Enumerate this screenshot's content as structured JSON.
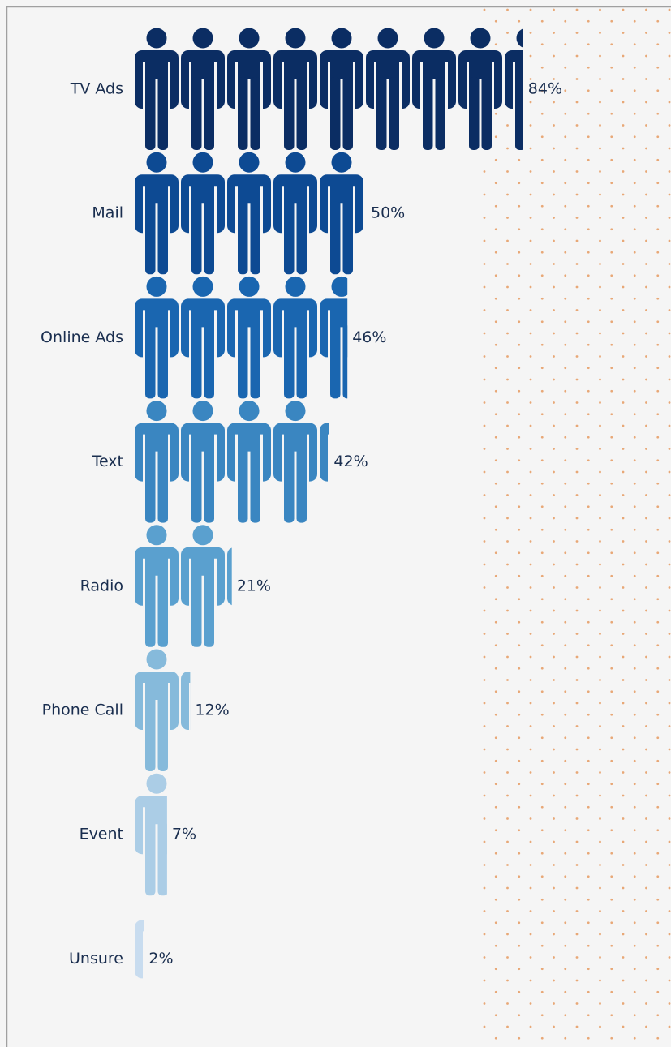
{
  "chart_data": {
    "type": "pictograph",
    "categories": [
      "TV Ads",
      "Mail",
      "Online Ads",
      "Text",
      "Radio",
      "Phone Call",
      "Event",
      "Unsure"
    ],
    "values": [
      84,
      50,
      46,
      42,
      21,
      12,
      7,
      2
    ],
    "value_labels": [
      "84%",
      "50%",
      "46%",
      "42%",
      "21%",
      "12%",
      "7%",
      "2%"
    ],
    "colors": [
      "#0b2d63",
      "#0d4a93",
      "#1a66b0",
      "#3a86c1",
      "#5aa0cf",
      "#86badb",
      "#abcde6",
      "#c8dcef"
    ]
  }
}
